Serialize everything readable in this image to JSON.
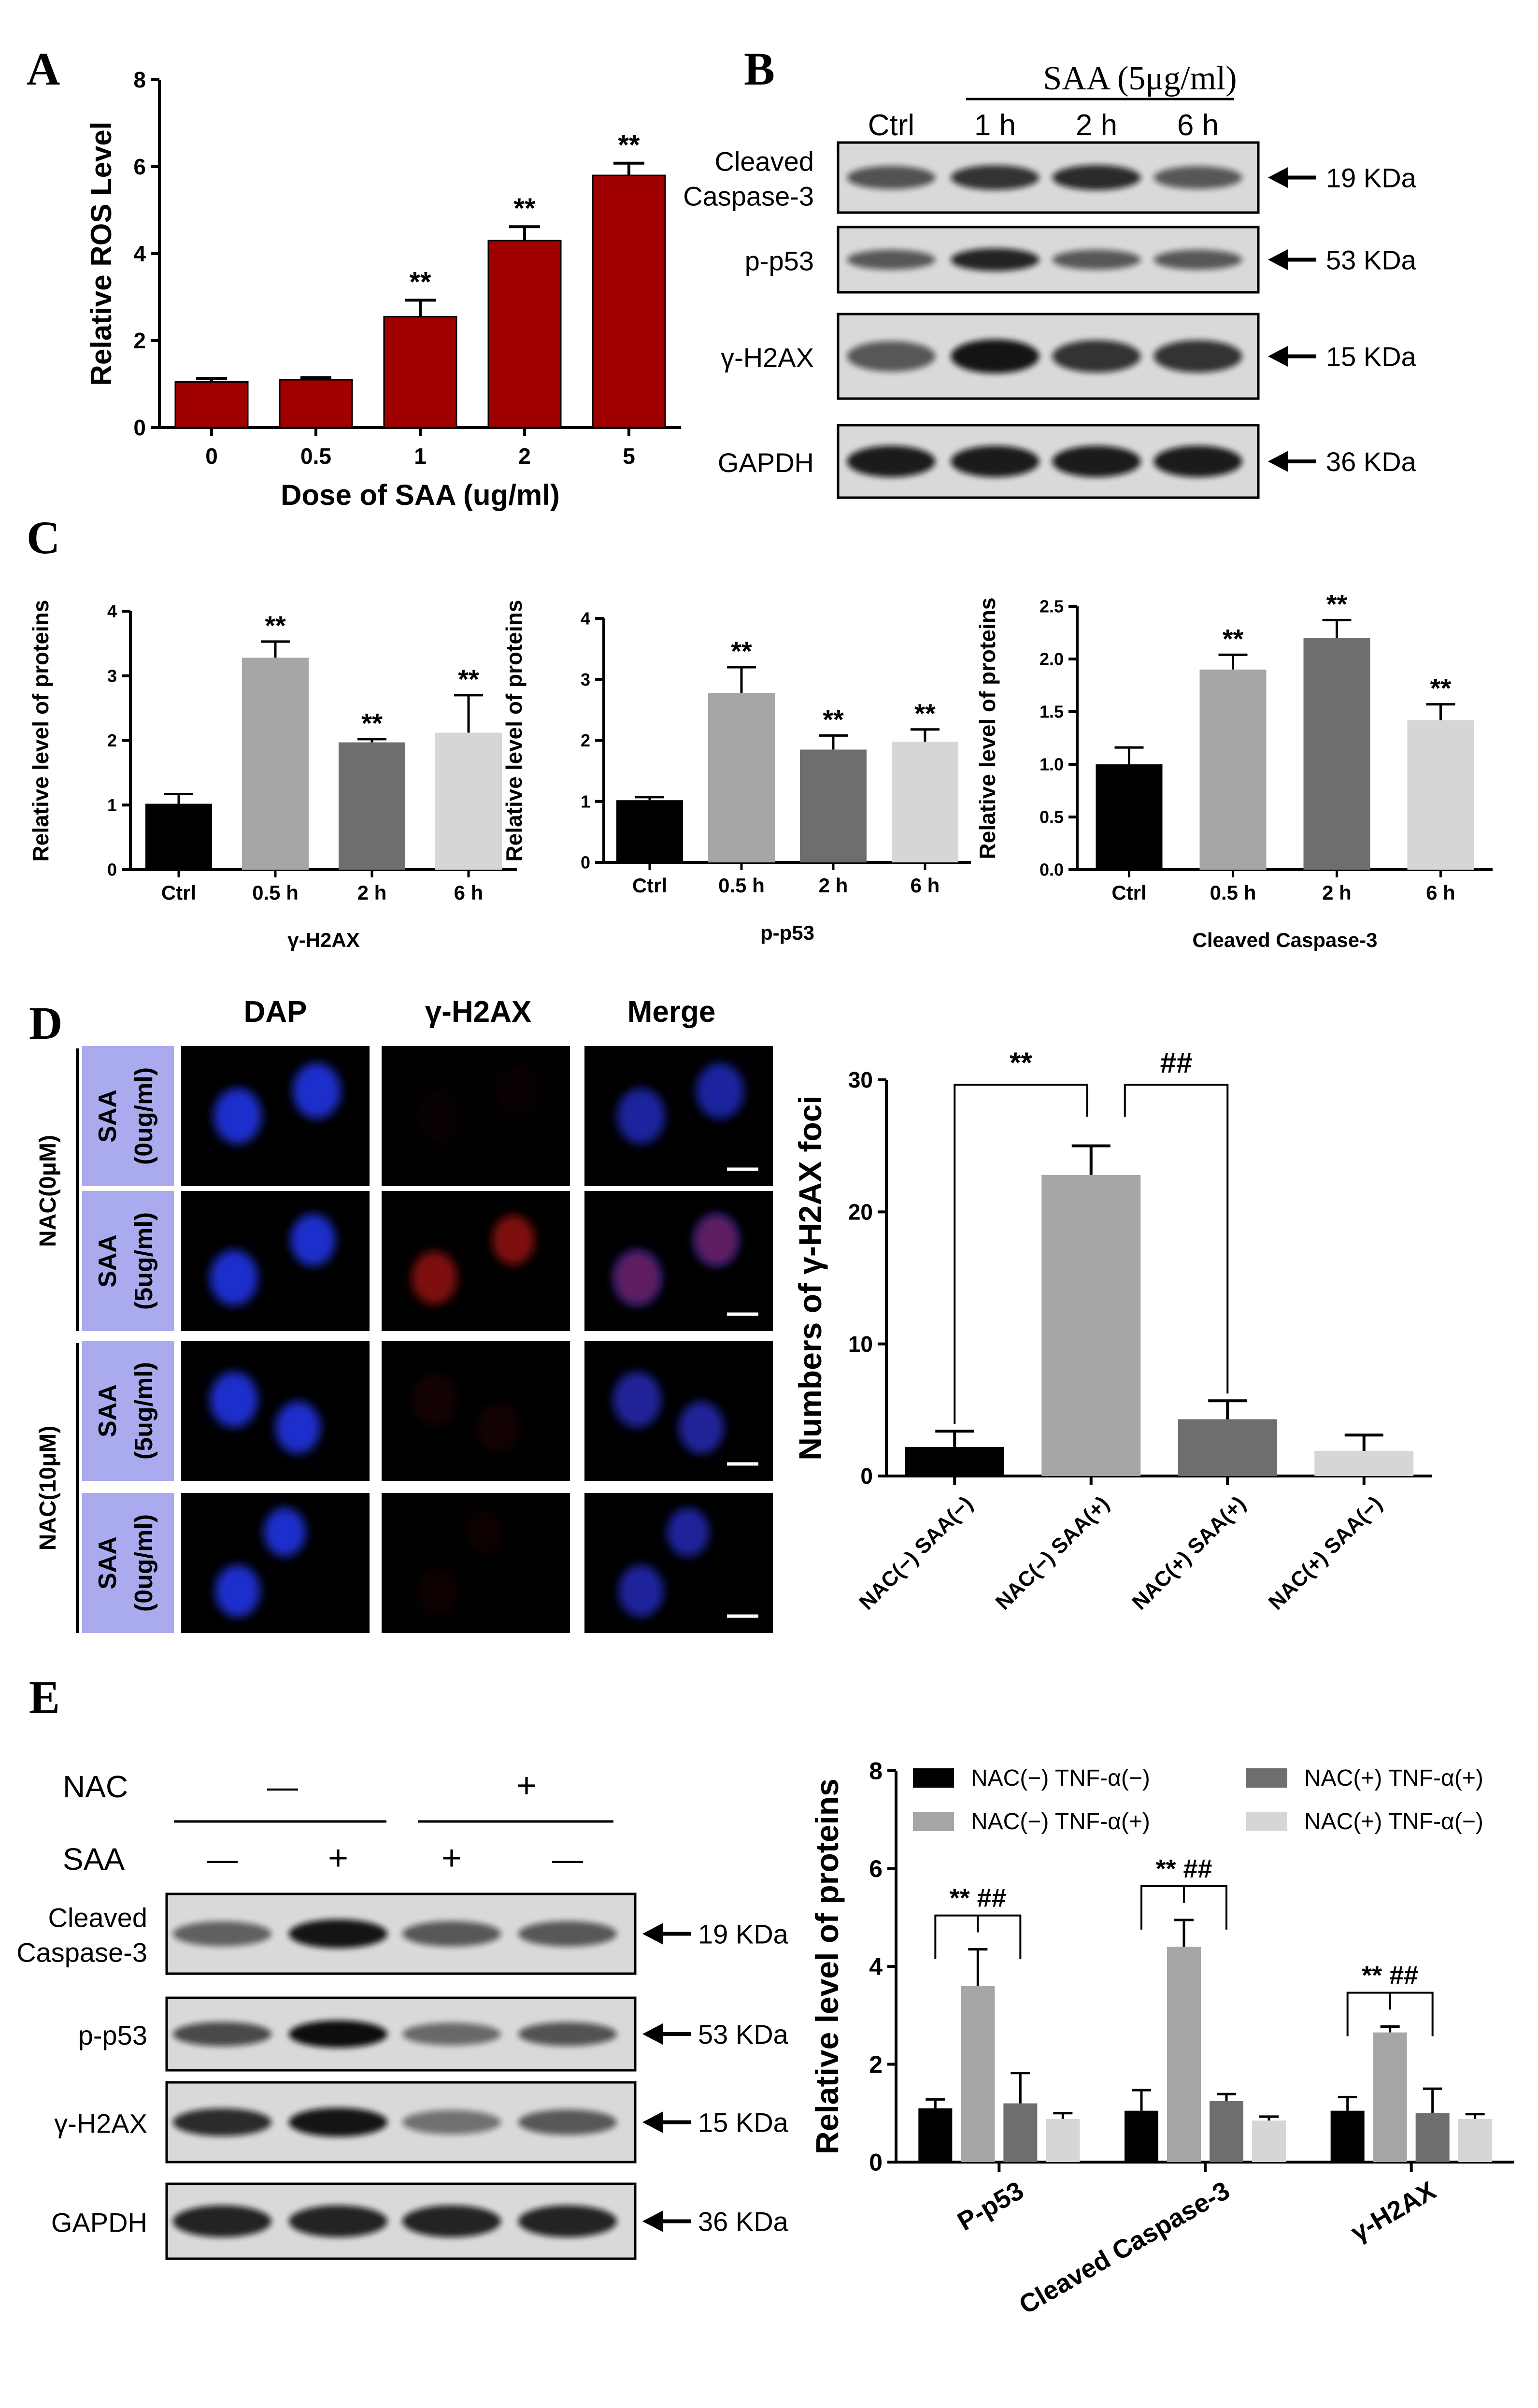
{
  "colors": {
    "dark_red": "#a00000",
    "black": "#000000",
    "gray_light": "#a6a6a6",
    "gray_dark": "#6e6e6e",
    "gray_pale": "#d6d6d6",
    "blot_bg": "#d9d9d9",
    "label_bg": "#aaaaee",
    "dapi_blue": "#1a2ecc",
    "h2ax_red": "#b01818"
  },
  "panel_letters": {
    "a": "A",
    "b": "B",
    "c": "C",
    "d": "D",
    "e": "E"
  },
  "chart_data": [
    {
      "id": "A",
      "type": "bar",
      "categories": [
        "0",
        "0.5",
        "1",
        "2",
        "5"
      ],
      "values": [
        1.05,
        1.1,
        2.55,
        4.3,
        5.8
      ],
      "errors": [
        0.08,
        0.05,
        0.38,
        0.32,
        0.28
      ],
      "sig": [
        "",
        "",
        "**",
        "**",
        "**"
      ],
      "xlabel": "Dose of SAA (ug/ml)",
      "ylabel": "Relative ROS Level",
      "ylim": [
        0,
        8
      ],
      "yticks": [
        "0",
        "2",
        "4",
        "6",
        "8"
      ],
      "color": "#a00000"
    },
    {
      "id": "C1",
      "type": "bar",
      "categories": [
        "Ctrl",
        "0.5 h",
        "2 h",
        "6 h"
      ],
      "values": [
        1.02,
        3.28,
        1.97,
        2.12
      ],
      "errors": [
        0.15,
        0.25,
        0.05,
        0.58
      ],
      "sig": [
        "",
        "**",
        "**",
        "**"
      ],
      "xlabel": "γ-H2AX",
      "ylabel": "Relative level of  proteins",
      "ylim": [
        0,
        4
      ],
      "yticks": [
        "0",
        "1",
        "2",
        "3",
        "4"
      ],
      "colors": [
        "#000000",
        "#a6a6a6",
        "#6e6e6e",
        "#d6d6d6"
      ]
    },
    {
      "id": "C2",
      "type": "bar",
      "categories": [
        "Ctrl",
        "0.5 h",
        "2 h",
        "6 h"
      ],
      "values": [
        1.02,
        2.78,
        1.85,
        1.98
      ],
      "errors": [
        0.05,
        0.42,
        0.23,
        0.2
      ],
      "sig": [
        "",
        "**",
        "**",
        "**"
      ],
      "xlabel": "p-p53",
      "ylabel": "Relative level of  proteins",
      "ylim": [
        0,
        4
      ],
      "yticks": [
        "0",
        "1",
        "2",
        "3",
        "4"
      ],
      "colors": [
        "#000000",
        "#a6a6a6",
        "#6e6e6e",
        "#d6d6d6"
      ]
    },
    {
      "id": "C3",
      "type": "bar",
      "categories": [
        "Ctrl",
        "0.5 h",
        "2 h",
        "6 h"
      ],
      "values": [
        1.0,
        1.9,
        2.2,
        1.42
      ],
      "errors": [
        0.16,
        0.14,
        0.17,
        0.15
      ],
      "sig": [
        "",
        "**",
        "**",
        "**"
      ],
      "xlabel": "Cleaved Caspase-3",
      "ylabel": "Relative level of  proteins",
      "ylim": [
        0,
        2.5
      ],
      "yticks": [
        "0.0",
        "0.5",
        "1.0",
        "1.5",
        "2.0",
        "2.5"
      ],
      "colors": [
        "#000000",
        "#a6a6a6",
        "#6e6e6e",
        "#d6d6d6"
      ]
    },
    {
      "id": "D",
      "type": "bar",
      "categories": [
        "NAC(−) SAA(−)",
        "NAC(−) SAA(+)",
        "NAC(+) SAA(+)",
        "NAC(+) SAA(−)"
      ],
      "values": [
        2.2,
        22.8,
        4.3,
        1.9
      ],
      "errors": [
        1.2,
        2.2,
        1.4,
        1.2
      ],
      "sig_brackets": [
        {
          "from": 0,
          "to": 1,
          "label": "**"
        },
        {
          "from": 1,
          "to": 2,
          "label": "##"
        }
      ],
      "ylabel": "Numbers of γ-H2AX foci",
      "ylim": [
        0,
        30
      ],
      "yticks": [
        "0",
        "10",
        "20",
        "30"
      ],
      "colors": [
        "#000000",
        "#a6a6a6",
        "#6e6e6e",
        "#d6d6d6"
      ]
    },
    {
      "id": "E",
      "type": "bar",
      "categories": [
        "P-p53",
        "Cleaved Caspase-3",
        "γ-H2AX"
      ],
      "series": [
        {
          "name": "NAC(−) TNF-α(−)",
          "values": [
            1.1,
            1.05,
            1.05
          ],
          "errors": [
            0.18,
            0.42,
            0.28
          ],
          "color": "#000000"
        },
        {
          "name": "NAC(−) TNF-α(+)",
          "values": [
            3.6,
            4.4,
            2.65
          ],
          "errors": [
            0.75,
            0.55,
            0.12
          ],
          "color": "#a6a6a6"
        },
        {
          "name": "NAC(+) TNF-α(+)",
          "values": [
            1.2,
            1.25,
            1.0
          ],
          "errors": [
            0.62,
            0.14,
            0.5
          ],
          "color": "#6e6e6e"
        },
        {
          "name": "NAC(+) TNF-α(−)",
          "values": [
            0.88,
            0.85,
            0.88
          ],
          "errors": [
            0.12,
            0.08,
            0.1
          ],
          "color": "#d6d6d6"
        }
      ],
      "sig_labels": [
        "** ##",
        "** ##",
        "** ##"
      ],
      "ylabel": "Relative level of proteins",
      "ylim": [
        0,
        8
      ],
      "yticks": [
        "0",
        "2",
        "4",
        "6",
        "8"
      ],
      "legend_placement": "top"
    }
  ],
  "blot_b": {
    "group_label": "SAA (5μg/ml)",
    "lanes": [
      "Ctrl",
      "1 h",
      "2 h",
      "6 h"
    ],
    "rows": [
      {
        "label": "Cleaved\nCaspase-3",
        "kda": "19 KDa",
        "intensity": [
          0.55,
          0.75,
          0.8,
          0.5
        ],
        "thick": 0.6
      },
      {
        "label": "p-p53",
        "kda": "53 KDa",
        "intensity": [
          0.5,
          0.85,
          0.5,
          0.5
        ],
        "thick": 0.55
      },
      {
        "label": "γ-H2AX",
        "kda": "15 KDa",
        "intensity": [
          0.5,
          0.95,
          0.75,
          0.75
        ],
        "thick": 0.7
      },
      {
        "label": "GAPDH",
        "kda": "36 KDa",
        "intensity": [
          0.9,
          0.9,
          0.9,
          0.9
        ],
        "thick": 0.75
      }
    ]
  },
  "micro_d": {
    "columns": [
      "DAP",
      "γ-H2AX",
      "Merge"
    ],
    "groups": [
      "NAC(0μM)",
      "NAC(10μM)"
    ],
    "rows": [
      {
        "line1": "SAA",
        "line2": "(0ug/ml)",
        "red": 0.05
      },
      {
        "line1": "SAA",
        "line2": "(5ug/ml)",
        "red": 0.8
      },
      {
        "line1": "SAA",
        "line2": "(5ug/ml)",
        "red": 0.12
      },
      {
        "line1": "SAA",
        "line2": "(0ug/ml)",
        "red": 0.08
      }
    ]
  },
  "blot_e": {
    "nac_label": "NAC",
    "saa_label": "SAA",
    "nac_groups": [
      "—",
      "+"
    ],
    "saa_signs": [
      "—",
      "+",
      "+",
      "—"
    ],
    "rows": [
      {
        "label": "Cleaved\nCaspase-3",
        "kda": "19 KDa",
        "intensity": [
          0.45,
          0.95,
          0.5,
          0.5
        ],
        "thick": 0.6
      },
      {
        "label": "p-p53",
        "kda": "53 KDa",
        "intensity": [
          0.6,
          1.0,
          0.4,
          0.55
        ],
        "thick": 0.6
      },
      {
        "label": "γ-H2AX",
        "kda": "15 KDa",
        "intensity": [
          0.8,
          0.95,
          0.35,
          0.5
        ],
        "thick": 0.6
      },
      {
        "label": "GAPDH",
        "kda": "36 KDa",
        "intensity": [
          0.85,
          0.85,
          0.85,
          0.85
        ],
        "thick": 0.75
      }
    ]
  }
}
